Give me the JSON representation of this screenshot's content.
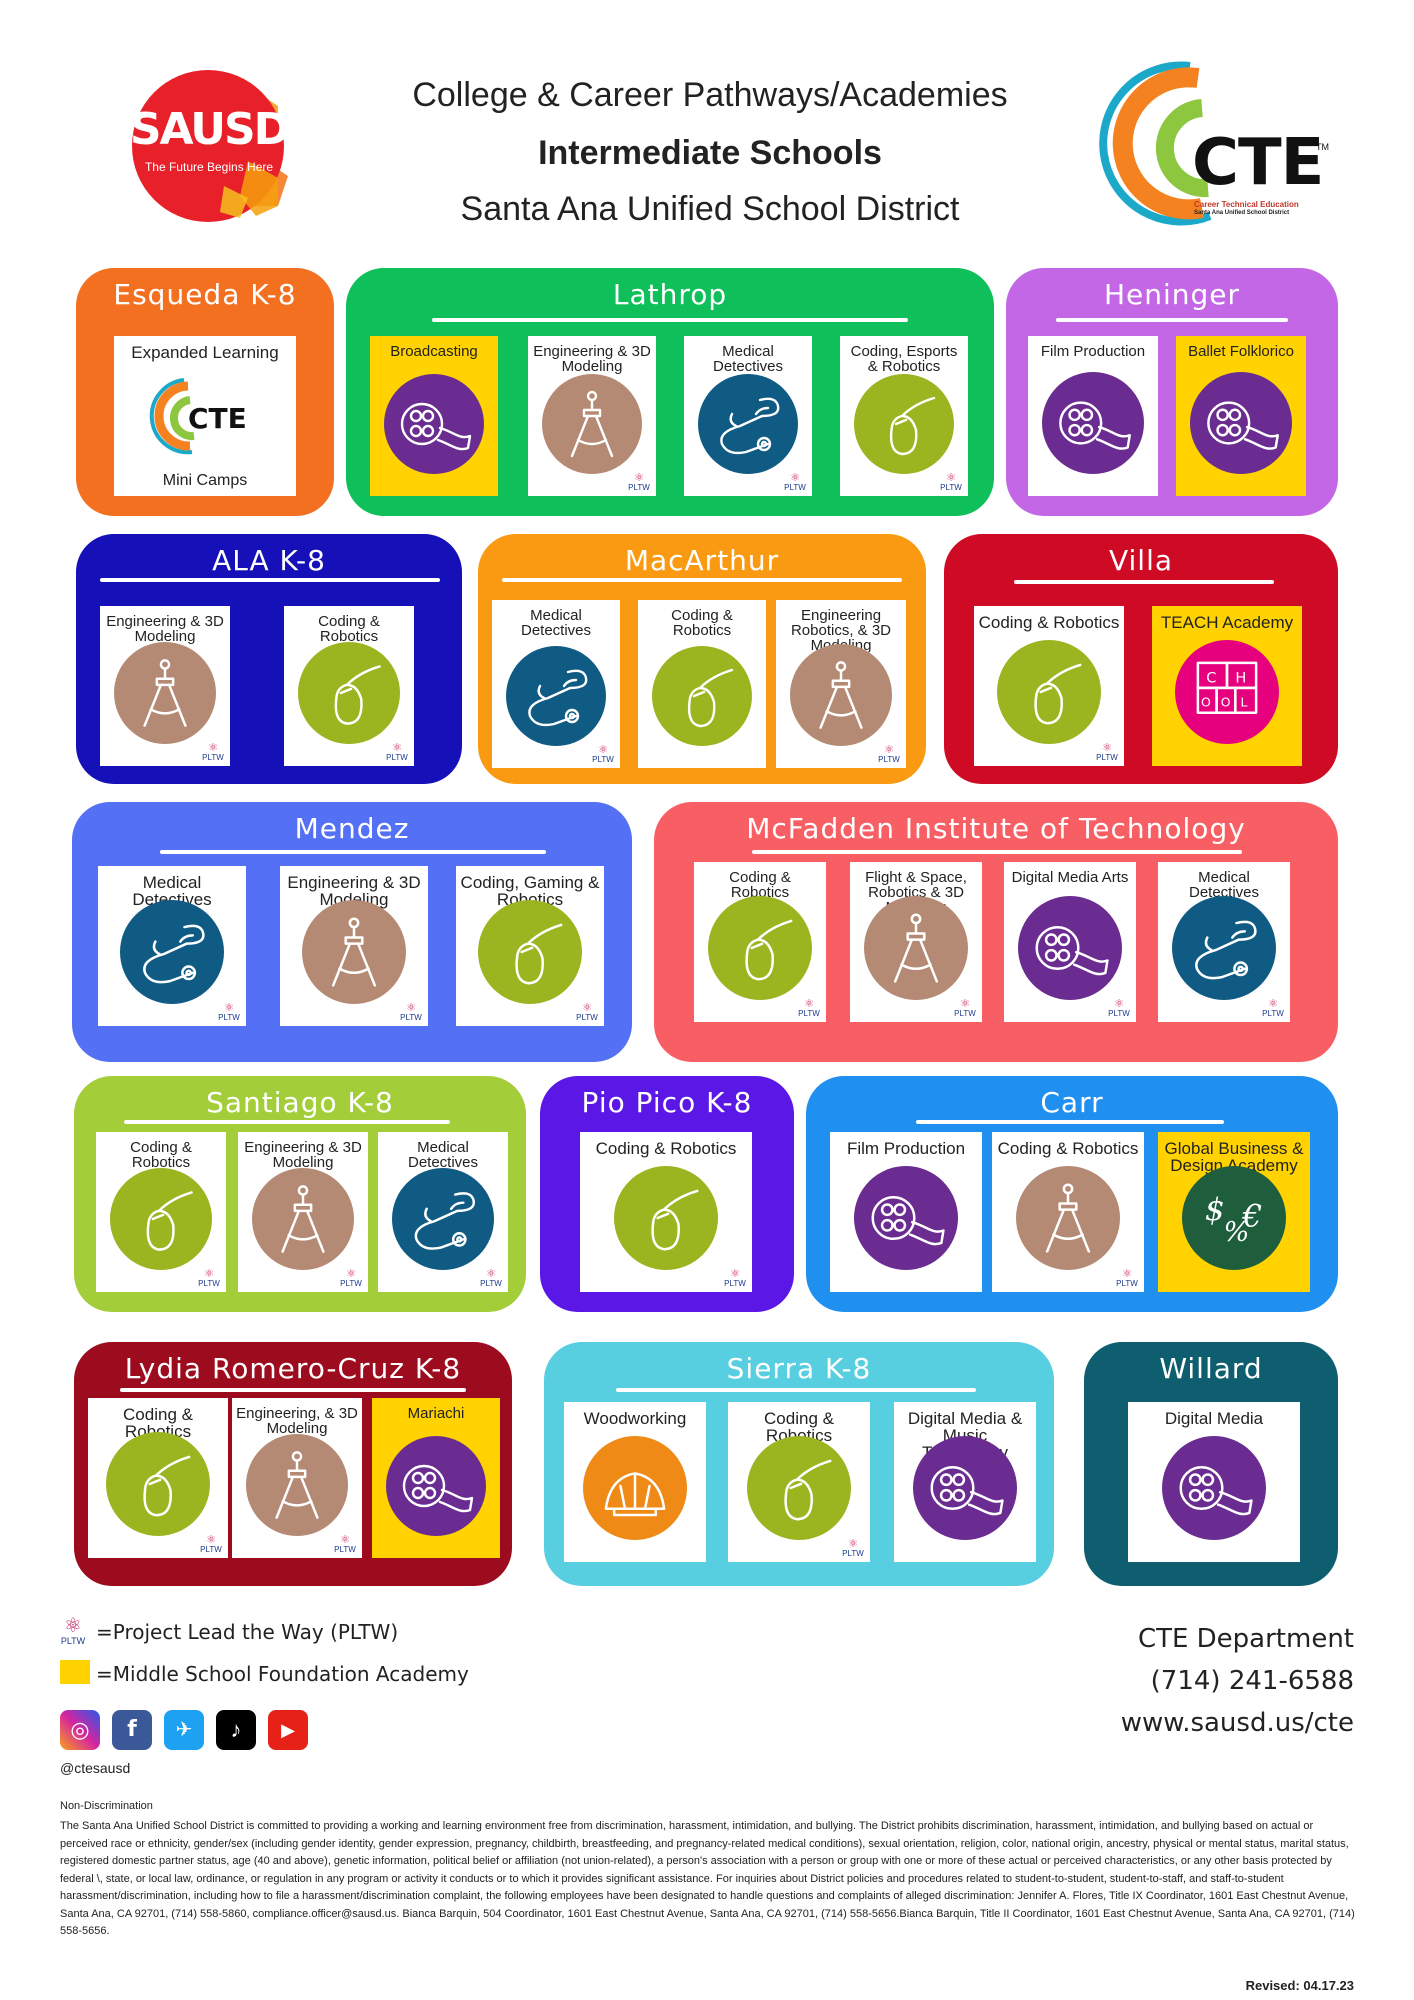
{
  "header": {
    "logo_left": {
      "name": "SAUSD",
      "tagline": "The Future Begins Here"
    },
    "title_line1": "College & Career Pathways/Academies",
    "title_line2": "Intermediate Schools",
    "title_line3": "Santa Ana Unified School District",
    "logo_right": {
      "name": "CTE",
      "tm": "TM",
      "subtitle": "Career Technical Education",
      "subtitle2": "Santa Ana Unified School District"
    }
  },
  "icon_colors": {
    "film": "#6a2c91",
    "engineering": "#b58a74",
    "medical": "#0f5b84",
    "coding": "#9ab520",
    "woodworking": "#ef8a17",
    "teach": "#e6007e",
    "business": "#1e5e3c"
  },
  "schools": [
    {
      "name": "Esqueda K-8",
      "color": "#f37021",
      "cards": [
        {
          "label": "Expanded Learning",
          "sublabel": "Mini Camps",
          "icon": "cte-logo",
          "yellow": false,
          "pltw": false
        }
      ]
    },
    {
      "name": "Lathrop",
      "color": "#0fbf5a",
      "cards": [
        {
          "label": "Broadcasting",
          "icon": "film",
          "yellow": true,
          "pltw": false
        },
        {
          "label": "Engineering & 3D Modeling",
          "icon": "engineering",
          "yellow": false,
          "pltw": true
        },
        {
          "label": "Medical Detectives",
          "icon": "medical",
          "yellow": false,
          "pltw": true
        },
        {
          "label": "Coding, Esports & Robotics",
          "icon": "coding",
          "yellow": false,
          "pltw": true
        }
      ]
    },
    {
      "name": "Heninger",
      "color": "#c467e6",
      "cards": [
        {
          "label": "Film Production",
          "icon": "film",
          "yellow": false,
          "pltw": false
        },
        {
          "label": "Ballet Folklorico",
          "icon": "film",
          "yellow": true,
          "pltw": false
        }
      ]
    },
    {
      "name": "ALA K-8",
      "color": "#1510b8",
      "cards": [
        {
          "label": "Engineering & 3D Modeling",
          "icon": "engineering",
          "yellow": false,
          "pltw": true
        },
        {
          "label": "Coding & Robotics",
          "icon": "coding",
          "yellow": false,
          "pltw": true
        }
      ]
    },
    {
      "name": "MacArthur",
      "color": "#f99a12",
      "cards": [
        {
          "label": "Medical Detectives",
          "icon": "medical",
          "yellow": false,
          "pltw": true
        },
        {
          "label": "Coding & Robotics",
          "icon": "coding",
          "yellow": false,
          "pltw": false
        },
        {
          "label": "Engineering Robotics, & 3D Modeling",
          "icon": "engineering",
          "yellow": false,
          "pltw": true
        }
      ]
    },
    {
      "name": "Villa",
      "color": "#cf0a25",
      "cards": [
        {
          "label": "Coding & Robotics",
          "icon": "coding",
          "yellow": false,
          "pltw": true
        },
        {
          "label": "TEACH Academy",
          "icon": "teach",
          "yellow": true,
          "pltw": false
        }
      ]
    },
    {
      "name": "Mendez",
      "color": "#5470f5",
      "cards": [
        {
          "label": "Medical Detectives",
          "icon": "medical",
          "yellow": false,
          "pltw": true
        },
        {
          "label": "Engineering & 3D Modeling",
          "icon": "engineering",
          "yellow": false,
          "pltw": true
        },
        {
          "label": "Coding, Gaming & Robotics",
          "icon": "coding",
          "yellow": false,
          "pltw": true
        }
      ]
    },
    {
      "name": "McFadden Institute of Technology",
      "color": "#f85f64",
      "cards": [
        {
          "label": "Coding & Robotics",
          "icon": "coding",
          "yellow": false,
          "pltw": true
        },
        {
          "label": "Flight & Space, Robotics & 3D Modeling",
          "icon": "engineering",
          "yellow": false,
          "pltw": true
        },
        {
          "label": "Digital Media Arts",
          "icon": "film",
          "yellow": false,
          "pltw": true
        },
        {
          "label": "Medical Detectives",
          "icon": "medical",
          "yellow": false,
          "pltw": true
        }
      ]
    },
    {
      "name": "Santiago K-8",
      "color": "#a3cd39",
      "cards": [
        {
          "label": "Coding & Robotics",
          "icon": "coding",
          "yellow": false,
          "pltw": true
        },
        {
          "label": "Engineering & 3D Modeling",
          "icon": "engineering",
          "yellow": false,
          "pltw": true
        },
        {
          "label": "Medical Detectives",
          "icon": "medical",
          "yellow": false,
          "pltw": true
        }
      ]
    },
    {
      "name": "Pio Pico K-8",
      "color": "#5b17e6",
      "cards": [
        {
          "label": "Coding & Robotics",
          "icon": "coding",
          "yellow": false,
          "pltw": true
        }
      ]
    },
    {
      "name": "Carr",
      "color": "#1f8ff0",
      "cards": [
        {
          "label": "Film Production",
          "icon": "film",
          "yellow": false,
          "pltw": false
        },
        {
          "label": "Coding & Robotics",
          "icon": "engineering",
          "yellow": false,
          "pltw": true
        },
        {
          "label": "Global Business & Design Academy",
          "icon": "business",
          "yellow": true,
          "pltw": false
        }
      ]
    },
    {
      "name": "Lydia Romero-Cruz K-8",
      "color": "#9c0b1e",
      "cards": [
        {
          "label": "Coding & Robotics",
          "icon": "coding",
          "yellow": false,
          "pltw": true
        },
        {
          "label": "Engineering, & 3D Modeling",
          "icon": "engineering",
          "yellow": false,
          "pltw": true
        },
        {
          "label": "Mariachi",
          "icon": "film",
          "yellow": true,
          "pltw": false
        }
      ]
    },
    {
      "name": "Sierra K-8",
      "color": "#57cfe0",
      "cards": [
        {
          "label": "Woodworking",
          "icon": "woodworking",
          "yellow": false,
          "pltw": false
        },
        {
          "label": "Coding & Robotics",
          "icon": "coding",
          "yellow": false,
          "pltw": true
        },
        {
          "label": "Digital Media & Music Technology",
          "icon": "film",
          "yellow": false,
          "pltw": false
        }
      ]
    },
    {
      "name": "Willard",
      "color": "#0e5e6f",
      "cards": [
        {
          "label": "Digital Media",
          "icon": "film",
          "yellow": false,
          "pltw": false
        }
      ]
    }
  ],
  "pltw_mark": "PLTW",
  "legend": {
    "pltw": "=Project Lead the Way (PLTW)",
    "foundation": "=Middle School Foundation Academy",
    "foundation_color": "#ffd200"
  },
  "social": {
    "icons": [
      "instagram-icon",
      "facebook-icon",
      "twitter-icon",
      "tiktok-icon",
      "youtube-icon"
    ],
    "handle": "@ctesausd"
  },
  "contact": {
    "dept": "CTE Department",
    "phone": "(714) 241-6588",
    "web": "www.sausd.us/cte"
  },
  "non_discrimination": {
    "title": "Non-Discrimination",
    "text": "The Santa Ana Unified School District is committed to providing a working and learning environment free from discrimination, harassment, intimidation, and bullying. The District prohibits discrimination, harassment, intimidation, and bullying based on actual or perceived race or ethnicity, gender/sex (including gender identity, gender expression, pregnancy, childbirth, breastfeeding, and pregnancy-related medical conditions), sexual orientation, religion, color, national origin, ancestry, physical or mental status, marital status, registered domestic partner status, age (40 and above), genetic information, political belief or affiliation (not union-related), a person's association with a person or group with one or more of these actual or perceived characteristics, or any other basis protected by federal \\, state, or local law, ordinance, or regulation in any program or activity it conducts or to which it provides significant assistance. For inquiries about District policies and procedures related to student-to-student, student-to-staff, and staff-to-student harassment/discrimination, including how to file a harassment/discrimination complaint, the following employees have been designated to handle questions and complaints of alleged discrimination: Jennifer A. Flores, Title IX Coordinator, 1601 East Chestnut Avenue, Santa Ana, CA 92701, (714) 558-5860, compliance.officer@sausd.us. Bianca Barquin, 504 Coordinator, 1601 East Chestnut Avenue, Santa Ana, CA 92701, (714) 558-5656.Bianca Barquin, Title II Coordinator, 1601 East Chestnut Avenue, Santa Ana, CA 92701, (714) 558-5656."
  },
  "revised": "Revised: 04.17.23"
}
